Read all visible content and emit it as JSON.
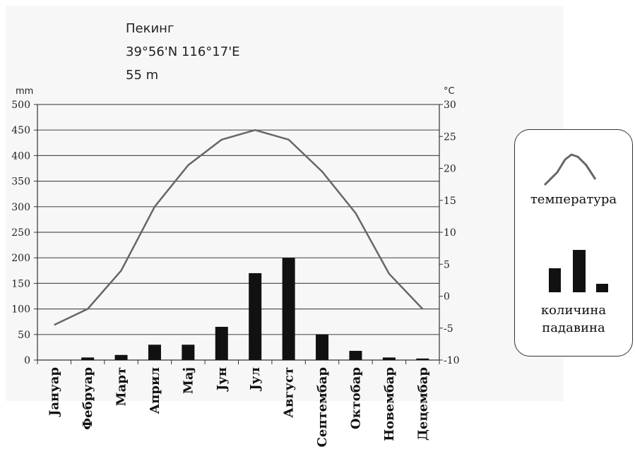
{
  "header": {
    "city": "Пекинг",
    "coords": "39°56'N 116°17'E",
    "elevation": "55 m"
  },
  "legend": {
    "temperature_label": "температура",
    "precip_label_line1": "количина",
    "precip_label_line2": "падавина"
  },
  "chart_data": {
    "type": "bar+line",
    "categories": [
      "Јануар",
      "Фебруар",
      "Март",
      "Април",
      "Мај",
      "Јун",
      "Јул",
      "Август",
      "Септембар",
      "Октобар",
      "Новембар",
      "Децембар"
    ],
    "precipitation_mm": [
      0,
      5,
      10,
      30,
      30,
      65,
      170,
      200,
      50,
      18,
      5,
      3
    ],
    "temperature_c": [
      -4.5,
      -2,
      4,
      14,
      20.5,
      24.5,
      26,
      24.5,
      19.5,
      13,
      3.5,
      -2
    ],
    "y_left_label": "mm",
    "y_left_ticks": [
      "0",
      "50",
      "100",
      "150",
      "200",
      "250",
      "300",
      "350",
      "400",
      "450",
      "500"
    ],
    "y_left_range": [
      0,
      500
    ],
    "y_right_label": "°C",
    "y_right_ticks": [
      "-10",
      "-5",
      "0",
      "5",
      "10",
      "15",
      "20",
      "25",
      "30"
    ],
    "y_right_range": [
      -10,
      30
    ],
    "grid": true,
    "colors": {
      "bars": "#111111",
      "line": "#666666",
      "grid": "#555555"
    }
  }
}
